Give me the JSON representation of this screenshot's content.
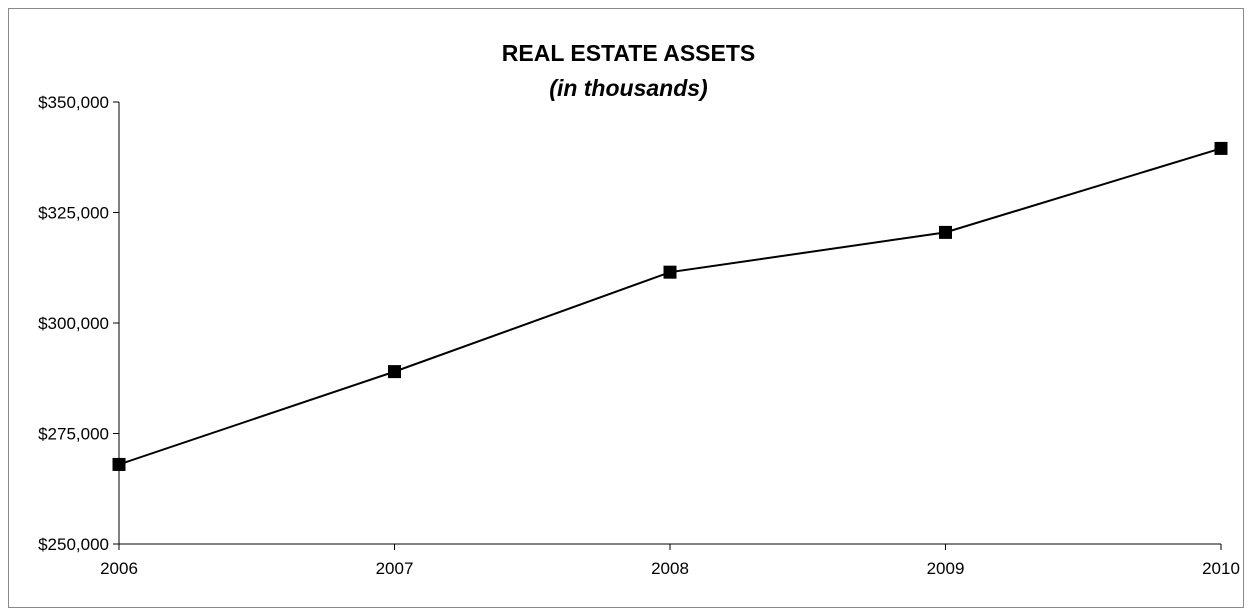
{
  "chart_data": {
    "type": "line",
    "title": "REAL ESTATE ASSETS",
    "subtitle": "(in thousands)",
    "xlabel": "",
    "ylabel": "",
    "categories": [
      "2006",
      "2007",
      "2008",
      "2009",
      "2010"
    ],
    "series": [
      {
        "values": [
          268000,
          289000,
          311500,
          320500,
          339500
        ]
      }
    ],
    "ylim": [
      250000,
      350000
    ],
    "yticks": [
      250000,
      275000,
      300000,
      325000,
      350000
    ],
    "ytick_labels": [
      "$250,000",
      "$275,000",
      "$300,000",
      "$325,000",
      "$350,000"
    ],
    "grid": false,
    "legend": "none",
    "line_color": "#000000",
    "marker": "square"
  }
}
